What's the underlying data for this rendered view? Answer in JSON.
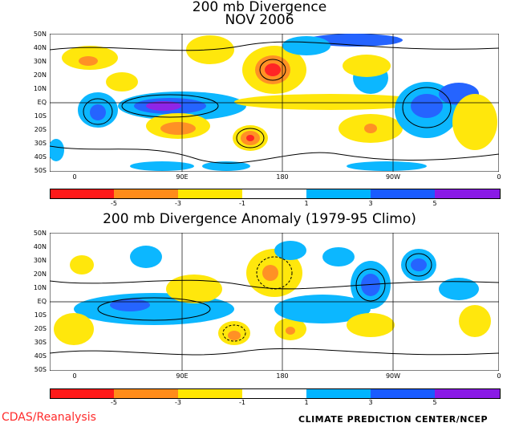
{
  "top_panel": {
    "title_line1": "200 mb Divergence",
    "title_line2": "NOV 2006",
    "lat_labels": [
      "50N",
      "40N",
      "30N",
      "20N",
      "10N",
      "EQ",
      "10S",
      "20S",
      "30S",
      "40S",
      "50S"
    ],
    "lon_labels": [
      "0",
      "90E",
      "180",
      "90W",
      "0"
    ]
  },
  "bottom_panel": {
    "title": "200 mb Divergence Anomaly (1979-95 Climo)",
    "lat_labels": [
      "50N",
      "40N",
      "30N",
      "20N",
      "10N",
      "EQ",
      "10S",
      "20S",
      "30S",
      "40S",
      "50S"
    ],
    "lon_labels": [
      "0",
      "90E",
      "180",
      "90W",
      "0"
    ]
  },
  "colorbar": {
    "tick_labels": [
      "-5",
      "-3",
      "-1",
      "1",
      "3",
      "5"
    ],
    "colors": [
      "#ff1a1a",
      "#ff8c1a",
      "#ffe600",
      "#ffffff",
      "#00b4ff",
      "#1a5cff",
      "#8a1ae6"
    ]
  },
  "footer": {
    "left": "CDAS/Reanalysis",
    "right": "CLIMATE PREDICTION CENTER/NCEP"
  }
}
